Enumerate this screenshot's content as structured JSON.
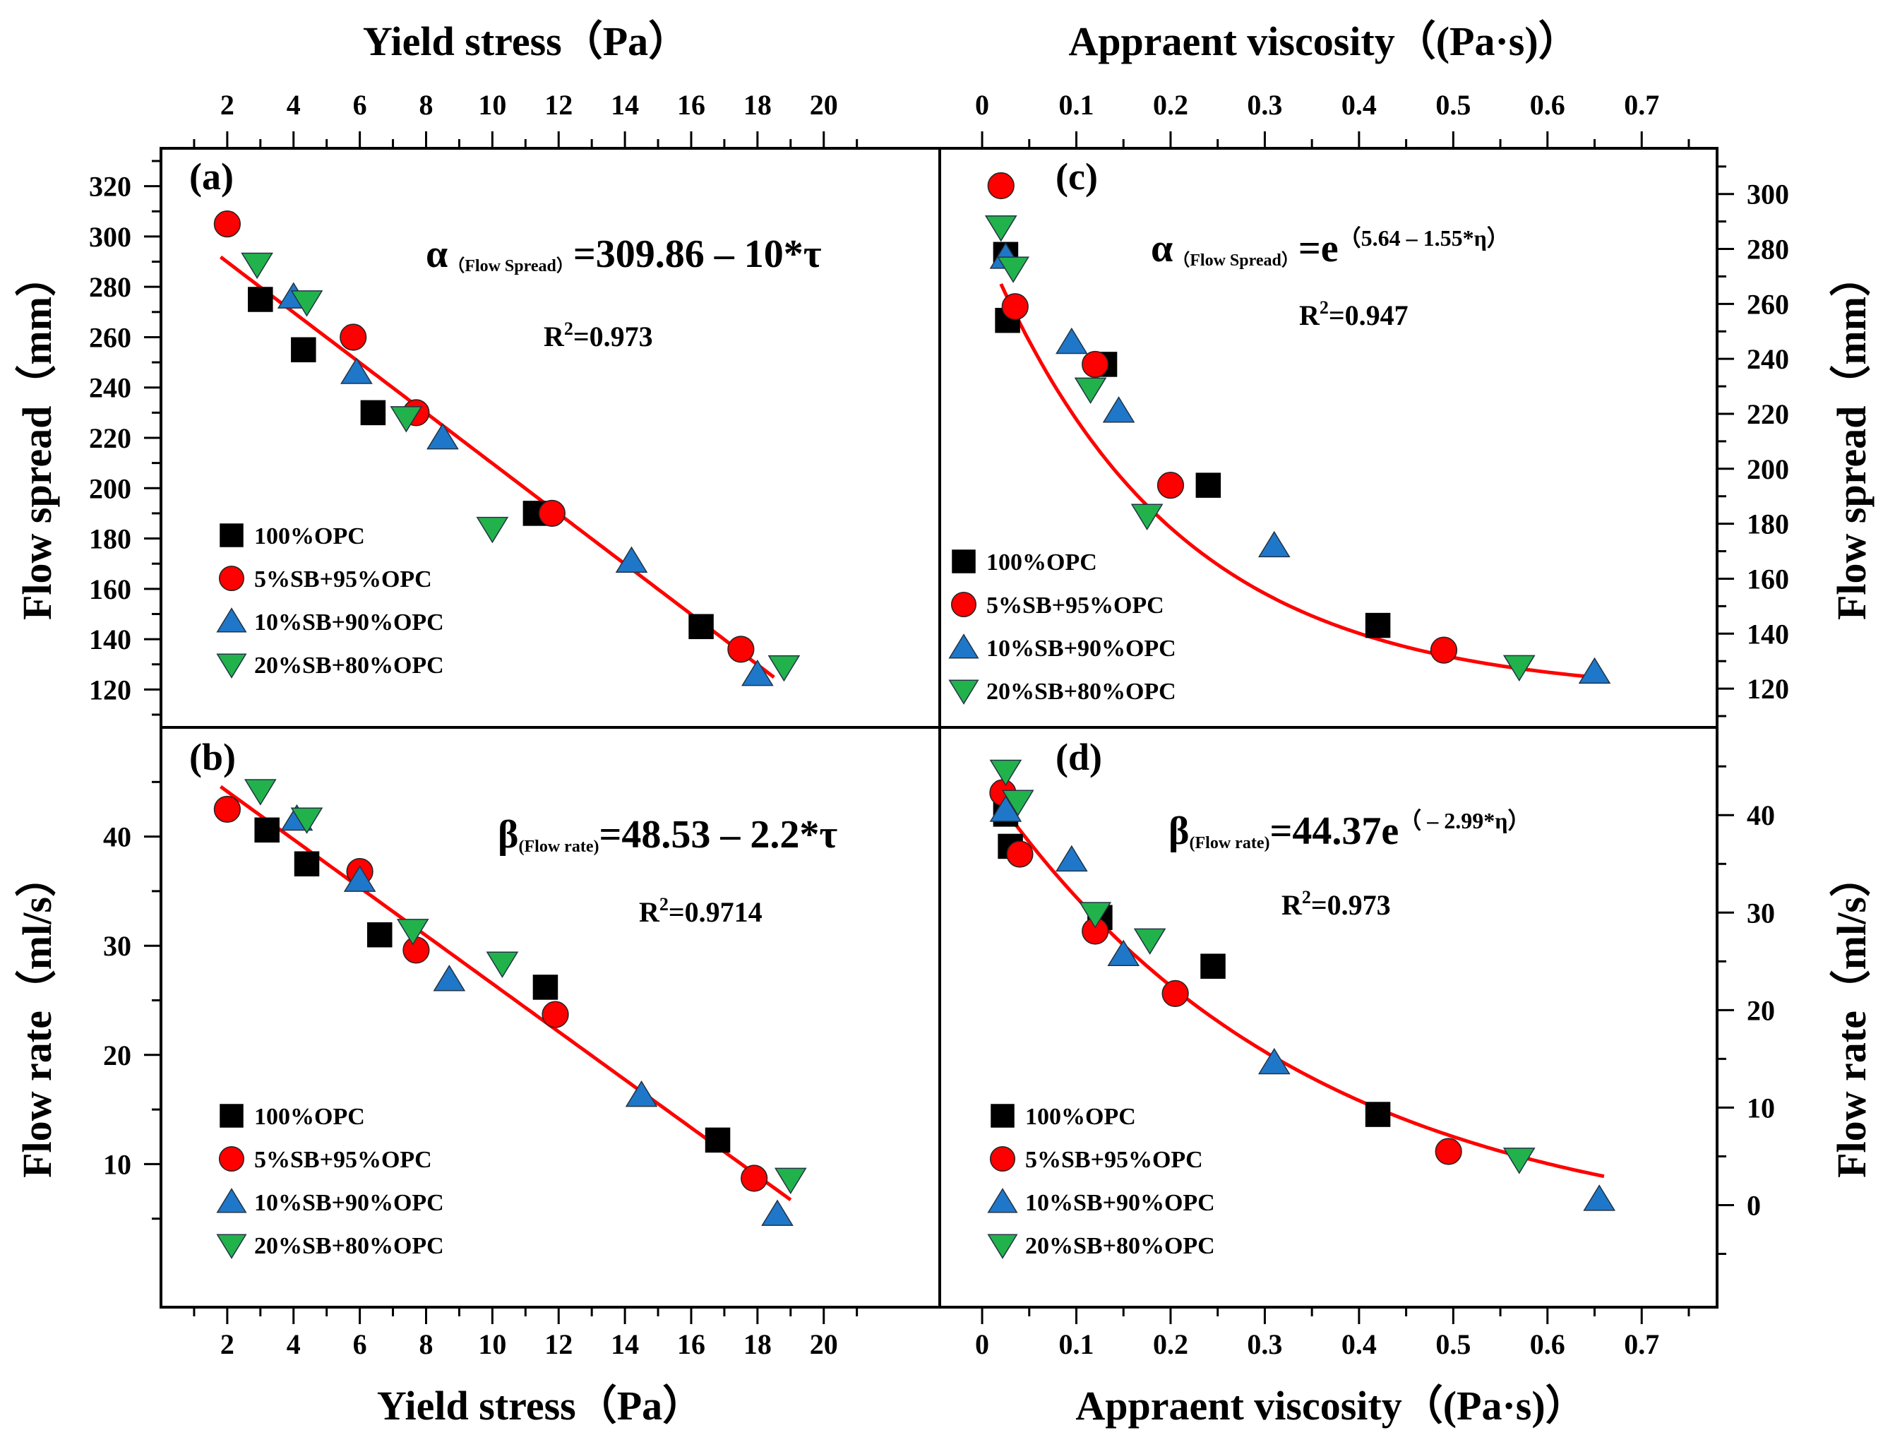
{
  "chart_data": [
    {
      "panel": "(a)",
      "type": "scatter",
      "xlabel": "Yield stress（Pa）",
      "ylabel": "Flow spread（mm）",
      "xlim": [
        0,
        23.5
      ],
      "ylim": [
        110,
        330
      ],
      "xticks": [
        2,
        4,
        6,
        8,
        10,
        12,
        14,
        16,
        18,
        20
      ],
      "yticks": [
        120,
        140,
        160,
        180,
        200,
        220,
        240,
        260,
        280,
        300,
        320
      ],
      "equation": {
        "greek": "α",
        "sub": "（Flow Spread）",
        "rest": "=309.86 – 10*τ",
        "sup": ""
      },
      "r2": {
        "base": "R",
        "sup": "2",
        "value": "=0.973"
      },
      "fit": {
        "kind": "linear",
        "a": 309.86,
        "b": -10,
        "x0": 1.8,
        "x1": 18.5
      },
      "series": [
        {
          "name": "100%OPC",
          "marker": "square",
          "color": "#000000",
          "x": [
            3.0,
            4.3,
            6.4,
            11.3,
            16.3
          ],
          "y": [
            275,
            255,
            230,
            190,
            145
          ]
        },
        {
          "name": "5%SB+95%OPC",
          "marker": "circle",
          "color": "#ff0000",
          "x": [
            2.0,
            5.8,
            7.7,
            11.8,
            17.5
          ],
          "y": [
            305,
            260,
            230,
            190,
            136
          ]
        },
        {
          "name": "10%SB+90%OPC",
          "marker": "triangle-up",
          "color": "#1f77c9",
          "x": [
            4.0,
            5.9,
            8.5,
            14.2,
            18.0
          ],
          "y": [
            276,
            246,
            220,
            171,
            126
          ]
        },
        {
          "name": "20%SB+80%OPC",
          "marker": "triangle-down",
          "color": "#22b24c",
          "x": [
            2.9,
            4.4,
            7.4,
            10.0,
            18.8
          ],
          "y": [
            289,
            274,
            228,
            184,
            129
          ]
        }
      ]
    },
    {
      "panel": "(b)",
      "type": "scatter",
      "xlabel": "Yield stress（Pa）",
      "ylabel": "Flow rate（ml/s）",
      "xlim": [
        0,
        23.5
      ],
      "ylim": [
        0,
        50
      ],
      "xticks": [
        2,
        4,
        6,
        8,
        10,
        12,
        14,
        16,
        18,
        20
      ],
      "yticks": [
        10,
        20,
        30,
        40
      ],
      "equation": {
        "greek": "β",
        "sub": "(Flow rate)",
        "rest": "=48.53 – 2.2*τ",
        "sup": ""
      },
      "r2": {
        "base": "R",
        "sup": "2",
        "value": "=0.9714"
      },
      "fit": {
        "kind": "linear",
        "a": 48.53,
        "b": -2.2,
        "x0": 1.8,
        "x1": 19.0
      },
      "series": [
        {
          "name": "100%OPC",
          "marker": "square",
          "color": "#000000",
          "x": [
            3.2,
            4.4,
            6.6,
            11.6,
            16.8
          ],
          "y": [
            40.6,
            37.5,
            31.0,
            26.2,
            12.2
          ]
        },
        {
          "name": "5%SB+95%OPC",
          "marker": "circle",
          "color": "#ff0000",
          "x": [
            2.0,
            6.0,
            7.7,
            11.9,
            17.9
          ],
          "y": [
            42.5,
            36.8,
            29.6,
            23.7,
            8.7
          ]
        },
        {
          "name": "10%SB+90%OPC",
          "marker": "triangle-up",
          "color": "#1f77c9",
          "x": [
            4.1,
            6.0,
            8.7,
            14.5,
            18.6
          ],
          "y": [
            41.6,
            36.0,
            26.9,
            16.3,
            5.4
          ]
        },
        {
          "name": "20%SB+80%OPC",
          "marker": "triangle-down",
          "color": "#22b24c",
          "x": [
            3.0,
            4.4,
            7.6,
            10.3,
            19.0
          ],
          "y": [
            44.2,
            41.6,
            31.4,
            28.4,
            8.6
          ]
        }
      ]
    },
    {
      "panel": "(c)",
      "type": "scatter",
      "xlabel": "Appraent viscosity（(Pa·s)）",
      "ylabel": "Flow spread（mm）",
      "xlim": [
        -0.045,
        0.78
      ],
      "ylim": [
        110,
        312
      ],
      "xticks": [
        0,
        0.1,
        0.2,
        0.3,
        0.4,
        0.5,
        0.6,
        0.7
      ],
      "yticks": [
        120,
        140,
        160,
        180,
        200,
        220,
        240,
        260,
        280,
        300
      ],
      "equation": {
        "greek": "α",
        "sub": "（Flow Spread）",
        "rest": "=e",
        "sup": "（5.64 – 1.55*η）"
      },
      "r2": {
        "base": "R",
        "sup": "2",
        "value": "=0.947"
      },
      "fit": {
        "kind": "exp-decay",
        "y0": 117.74,
        "A": 165.25,
        "k": 5.0,
        "x0": 0.02,
        "x1": 0.66
      },
      "series": [
        {
          "name": "100%OPC",
          "marker": "square",
          "color": "#000000",
          "x": [
            0.025,
            0.027,
            0.13,
            0.24,
            0.42
          ],
          "y": [
            278,
            254,
            238,
            194,
            143
          ]
        },
        {
          "name": "5%SB+95%OPC",
          "marker": "circle",
          "color": "#ff0000",
          "x": [
            0.02,
            0.035,
            0.12,
            0.2,
            0.49
          ],
          "y": [
            303,
            259,
            238,
            194,
            134
          ]
        },
        {
          "name": "10%SB+90%OPC",
          "marker": "triangle-up",
          "color": "#1f77c9",
          "x": [
            0.025,
            0.095,
            0.145,
            0.31,
            0.65
          ],
          "y": [
            277,
            246,
            221,
            172,
            126
          ]
        },
        {
          "name": "20%SB+80%OPC",
          "marker": "triangle-down",
          "color": "#22b24c",
          "x": [
            0.02,
            0.033,
            0.115,
            0.175,
            0.57
          ],
          "y": [
            288,
            273,
            229,
            183,
            128
          ]
        }
      ]
    },
    {
      "panel": "(d)",
      "type": "scatter",
      "xlabel": "Appraent viscosity（(Pa·s)）",
      "ylabel": "Flow rate（ml/s）",
      "xlim": [
        -0.045,
        0.78
      ],
      "ylim": [
        -7.5,
        49
      ],
      "xticks": [
        0,
        0.1,
        0.2,
        0.3,
        0.4,
        0.5,
        0.6,
        0.7
      ],
      "yticks": [
        0,
        10,
        20,
        30,
        40
      ],
      "equation": {
        "greek": "β",
        "sub": "(Flow rate)",
        "rest": "=44.37e",
        "sup": "（ – 2.99*η）"
      },
      "r2": {
        "base": "R",
        "sup": "2",
        "value": "=0.973"
      },
      "fit": {
        "kind": "exp-decay",
        "y0": -3.69,
        "A": 47.5,
        "k": 2.98,
        "x0": 0.012,
        "x1": 0.66
      },
      "series": [
        {
          "name": "100%OPC",
          "marker": "square",
          "color": "#000000",
          "x": [
            0.025,
            0.03,
            0.125,
            0.245,
            0.42
          ],
          "y": [
            40.1,
            36.8,
            29.5,
            24.5,
            9.3
          ]
        },
        {
          "name": "5%SB+95%OPC",
          "marker": "circle",
          "color": "#ff0000",
          "x": [
            0.022,
            0.04,
            0.12,
            0.205,
            0.495
          ],
          "y": [
            42.3,
            36.0,
            28.1,
            21.7,
            5.5
          ]
        },
        {
          "name": "10%SB+90%OPC",
          "marker": "triangle-up",
          "color": "#1f77c9",
          "x": [
            0.025,
            0.095,
            0.15,
            0.31,
            0.655
          ],
          "y": [
            40.5,
            35.4,
            25.7,
            14.6,
            0.6
          ]
        },
        {
          "name": "20%SB+80%OPC",
          "marker": "triangle-down",
          "color": "#22b24c",
          "x": [
            0.025,
            0.038,
            0.12,
            0.178,
            0.57
          ],
          "y": [
            44.5,
            41.4,
            29.9,
            27.2,
            4.7
          ]
        }
      ]
    }
  ],
  "top_axis_titles": {
    "left": "Yield stress（Pa）",
    "right": "Appraent viscosity（(Pa·s)）"
  },
  "bottom_axis_titles": {
    "left": "Yield stress（Pa）",
    "right": "Appraent viscosity（(Pa·s)）"
  },
  "left_axis_titles": {
    "top": "Flow spread（mm）",
    "bottom": "Flow rate（ml/s）"
  },
  "right_axis_titles": {
    "top": "Flow spread（mm）",
    "bottom": "Flow rate（ml/s）"
  },
  "colors": {
    "fit_line": "#ff0000",
    "frame": "#000000"
  }
}
